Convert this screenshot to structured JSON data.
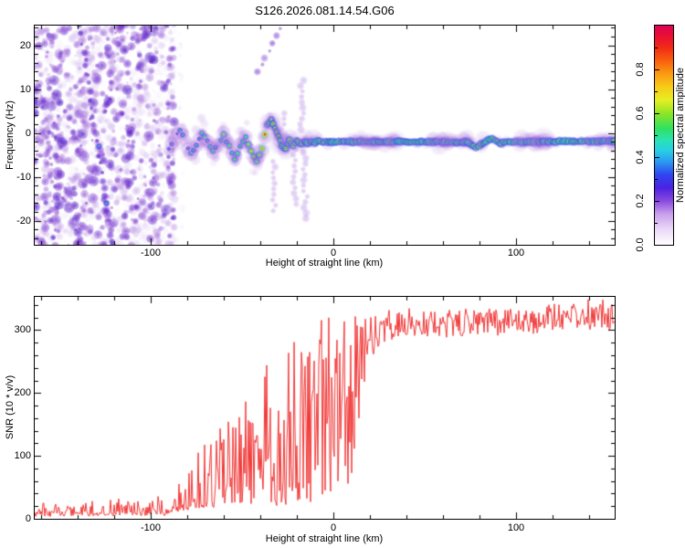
{
  "title": "S126.2026.081.14.54.G06",
  "chart_data": [
    {
      "id": "spectrogram",
      "type": "heatmap",
      "xlabel": "Height of straight line (km)",
      "ylabel": "Frequency (Hz)",
      "xlim": [
        -163.5,
        154
      ],
      "ylim": [
        -25.5,
        24.5
      ],
      "xticks": {
        "major": [
          -100,
          0,
          100
        ],
        "labels": [
          "-100",
          "0",
          "100"
        ],
        "minor_step": 20
      },
      "yticks": {
        "major": [
          -20,
          -10,
          0,
          10,
          20
        ],
        "labels": [
          "-20",
          "-10",
          "0",
          "10",
          "20"
        ],
        "minor_step": 2
      },
      "colorbar": {
        "label": "Normalized spectral amplitude",
        "range": [
          0,
          1
        ],
        "ticks": [
          0,
          0.2,
          0.4,
          0.6,
          0.8
        ],
        "tick_labels": [
          "0.0",
          "0.2",
          "0.4",
          "0.6",
          "0.8"
        ],
        "stops": [
          [
            0,
            "#ffffff"
          ],
          [
            0.07,
            "#ead9f7"
          ],
          [
            0.14,
            "#c9a0ec"
          ],
          [
            0.2,
            "#8a4ade"
          ],
          [
            0.26,
            "#4b22e2"
          ],
          [
            0.32,
            "#2f46f0"
          ],
          [
            0.38,
            "#2b9bf0"
          ],
          [
            0.43,
            "#28cfe4"
          ],
          [
            0.48,
            "#2ae3b0"
          ],
          [
            0.53,
            "#30e061"
          ],
          [
            0.6,
            "#8fe526"
          ],
          [
            0.66,
            "#e6ef22"
          ],
          [
            0.72,
            "#f7cb18"
          ],
          [
            0.78,
            "#fa9a12"
          ],
          [
            0.84,
            "#f9600e"
          ],
          [
            0.9,
            "#f12a16"
          ],
          [
            0.96,
            "#e70c38"
          ],
          [
            1,
            "#dd0455"
          ]
        ]
      },
      "features": {
        "noise_field": {
          "x_km": [
            -163.5,
            -88
          ],
          "freq_hz": [
            -25.5,
            24.5
          ],
          "blob_count": 1500,
          "palette": [
            [
              0,
              "#f3ecfb"
            ],
            [
              0.45,
              "#a066da"
            ],
            [
              0.8,
              "#6b24cc"
            ],
            [
              1,
              "#4d17c6"
            ]
          ]
        },
        "diagonal_streaks": [
          {
            "from": [
              -138.5,
              24.2
            ],
            "to": [
              -121,
              -25.5
            ],
            "strength": 1.0
          },
          {
            "from": [
              -156.5,
              1.0
            ],
            "to": [
              -154.5,
              -11.0
            ],
            "strength": 0.45
          },
          {
            "from": [
              -41.5,
              14.2
            ],
            "to": [
              -27.5,
              25.2
            ],
            "strength": 0.55
          }
        ],
        "band_scatter_km": [
          -90,
          -12
        ],
        "ridge_hz": [
          [
            -90,
            -3.5
          ],
          [
            -87,
            -1.0
          ],
          [
            -84,
            0.8
          ],
          [
            -81,
            -2.0
          ],
          [
            -78,
            -4.6
          ],
          [
            -75,
            -2.5
          ],
          [
            -72,
            0.4
          ],
          [
            -69,
            -1.6
          ],
          [
            -66,
            -4.2
          ],
          [
            -63,
            -2.0
          ],
          [
            -60,
            -0.6
          ],
          [
            -57,
            -3.2
          ],
          [
            -54,
            -5.8
          ],
          [
            -51,
            -3.4
          ],
          [
            -48,
            -1.2
          ],
          [
            -45,
            -4.0
          ],
          [
            -42,
            -6.4
          ],
          [
            -39,
            -3.2
          ],
          [
            -36,
            1.8
          ],
          [
            -34,
            3.0
          ],
          [
            -32,
            1.2
          ],
          [
            -30,
            -0.8
          ],
          [
            -28,
            -2.8
          ],
          [
            -26,
            -3.6
          ],
          [
            -24,
            -1.6
          ],
          [
            -22,
            -3.0
          ],
          [
            -20,
            -1.7
          ],
          [
            -18,
            -2.6
          ],
          [
            -16,
            -1.9
          ],
          [
            -14,
            -2.4
          ],
          [
            -12,
            -1.8
          ],
          [
            -10,
            -2.2
          ],
          [
            -8,
            -1.7
          ],
          [
            -6,
            -2.3
          ],
          [
            -4,
            -1.9
          ],
          [
            -2,
            -2.1
          ],
          [
            0,
            -2.0
          ],
          [
            40,
            -2.0
          ],
          [
            74,
            -2.1
          ],
          [
            78,
            -3.4
          ],
          [
            83,
            -2.1
          ],
          [
            87,
            -1.1
          ],
          [
            91,
            -2.4
          ],
          [
            95,
            -2.0
          ],
          [
            154,
            -1.9
          ]
        ],
        "ridge_intensity": [
          [
            -90,
            0.34
          ],
          [
            -84,
            0.4
          ],
          [
            -78,
            0.46
          ],
          [
            -72,
            0.5
          ],
          [
            -66,
            0.54
          ],
          [
            -60,
            0.6
          ],
          [
            -54,
            0.56
          ],
          [
            -48,
            0.62
          ],
          [
            -44,
            0.66
          ],
          [
            -40,
            0.74
          ],
          [
            -36,
            0.86
          ],
          [
            -32,
            0.82
          ],
          [
            -28,
            0.88
          ],
          [
            -24,
            0.93
          ],
          [
            -20,
            0.96
          ],
          [
            -16,
            0.94
          ],
          [
            -12,
            0.97
          ],
          [
            0,
            0.97
          ],
          [
            154,
            0.97
          ]
        ],
        "plumes": [
          [
            -32.5,
            -6.5,
            -18.0
          ],
          [
            -27.5,
            4.5,
            -3.5
          ],
          [
            -21.5,
            -2.5,
            -17.0
          ],
          [
            -17.3,
            12.0,
            -0.5
          ],
          [
            -15.5,
            -4.5,
            -20.0
          ]
        ]
      }
    },
    {
      "id": "snr",
      "type": "line",
      "color": "#f23737",
      "xlabel": "Height of straight line (km)",
      "ylabel": "SNR (10 * v/v)",
      "xlim": [
        -163.5,
        154
      ],
      "ylim": [
        0,
        353
      ],
      "xticks": {
        "major": [
          -100,
          0,
          100
        ],
        "labels": [
          "-100",
          "0",
          "100"
        ],
        "minor_step": 20
      },
      "yticks": {
        "major": [
          0,
          100,
          200,
          300
        ],
        "labels": [
          "0",
          "100",
          "200",
          "300"
        ],
        "minor_step": 20
      },
      "envelope": [
        [
          -163,
          6,
          22,
          3.2
        ],
        [
          -120,
          7,
          24,
          3.2
        ],
        [
          -100,
          7,
          26,
          3.2
        ],
        [
          -90,
          8,
          30,
          3.2
        ],
        [
          -84,
          14,
          60,
          3.0
        ],
        [
          -78,
          16,
          85,
          2.8
        ],
        [
          -72,
          18,
          100,
          2.8
        ],
        [
          -66,
          20,
          115,
          2.6
        ],
        [
          -60,
          22,
          130,
          2.6
        ],
        [
          -54,
          22,
          145,
          2.4
        ],
        [
          -48,
          24,
          170,
          2.4
        ],
        [
          -42,
          24,
          200,
          2.2
        ],
        [
          -36,
          24,
          235,
          2.0
        ],
        [
          -30,
          22,
          265,
          1.7
        ],
        [
          -24,
          20,
          285,
          1.5
        ],
        [
          -18,
          18,
          292,
          1.3
        ],
        [
          -10,
          16,
          298,
          1.2
        ],
        [
          -2,
          18,
          302,
          1.1
        ],
        [
          4,
          26,
          300,
          1.0
        ],
        [
          8,
          45,
          280,
          0.95
        ],
        [
          12,
          90,
          235,
          0.9
        ],
        [
          16,
          170,
          160,
          0.85
        ],
        [
          20,
          240,
          90,
          0.9
        ],
        [
          24,
          272,
          58,
          1.0
        ],
        [
          28,
          282,
          48,
          1.0
        ],
        [
          36,
          288,
          44,
          1.0
        ],
        [
          50,
          290,
          42,
          1.0
        ],
        [
          70,
          288,
          46,
          1.0
        ],
        [
          90,
          293,
          42,
          1.0
        ],
        [
          110,
          296,
          42,
          1.0
        ],
        [
          125,
          298,
          44,
          1.0
        ],
        [
          140,
          300,
          46,
          1.0
        ],
        [
          150,
          303,
          46,
          1.0
        ],
        [
          154,
          302,
          48,
          1.0
        ]
      ]
    }
  ]
}
